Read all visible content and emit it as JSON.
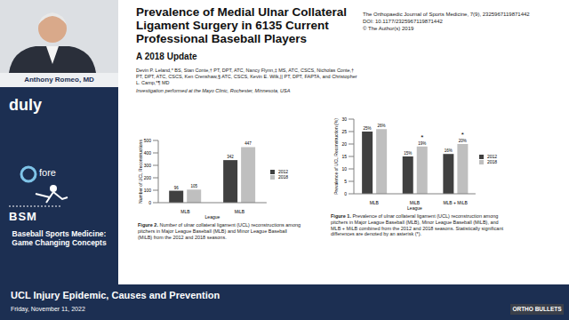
{
  "sidebar": {
    "speaker": "Anthony Romeo, MD",
    "logos": [
      "duly",
      "fore",
      "BSM"
    ],
    "program": "Baseball Sports Medicine: Game Changing Concepts"
  },
  "header": {
    "title": "Prevalence of Medial Ulnar Collateral Ligament Surgery in 6135 Current Professional Baseball Players",
    "subtitle": "A 2018 Update",
    "authors": "Devin P. Leland,* BS, Stan Conte,† PT, DPT, ATC, Nancy Flynn,‡ MS, ATC, CSCS, Nicholas Conte,† PT, DPT, ATC, CSCS, Ken Crenshaw,§ ATC, CSCS, Kevin E. Wilk,|| PT, DPT, FAPTA, and Christopher L. Camp,*¶ MD",
    "affiliation": "Investigation performed at the Mayo Clinic, Rochester, Minnesota, USA"
  },
  "journal": [
    "The Orthopaedic Journal of Sports Medicine, 7(9), 2325967119871442",
    "DOI: 10.1177/2325967119871442",
    "© The Author(s) 2019"
  ],
  "chart_data": [
    {
      "type": "bar",
      "figure": "Figure 2.",
      "caption": "Number of ulnar collateral ligament (UCL) reconstructions among pitchers in Major League Baseball (MLB) and Minor League Baseball (MiLB) from the 2012 and 2018 seasons.",
      "x_label": "League",
      "y_label": "Number of UCL Reconstructions",
      "categories": [
        "MLB",
        "MiLB"
      ],
      "series": [
        {
          "name": "2012",
          "color": "#404040",
          "values": [
            96,
            342
          ]
        },
        {
          "name": "2018",
          "color": "#bfbfbf",
          "values": [
            105,
            447
          ]
        }
      ],
      "ylim": [
        0,
        500
      ],
      "yticks": [
        0,
        100,
        200,
        300,
        400,
        500
      ],
      "grid": false,
      "legend": "right",
      "data_labels": true
    },
    {
      "type": "bar",
      "figure": "Figure 1.",
      "caption": "Prevalence of ulnar collateral ligament (UCL) reconstruction among pitchers in Major League Baseball (MLB), Minor League Baseball (MiLB), and MLB + MiLB combined from the 2012 and 2018 seasons. Statistically significant differences are denoted by an asterisk (*).",
      "x_label": "League",
      "y_label": "Prevalence of UCL Reconstruction (%)",
      "categories": [
        "MLB",
        "MiLB",
        "MLB + MiLB"
      ],
      "series": [
        {
          "name": "2012",
          "color": "#404040",
          "values": [
            25,
            15,
            16
          ],
          "value_labels": [
            "25%",
            "15%",
            "16%"
          ]
        },
        {
          "name": "2018",
          "color": "#bfbfbf",
          "values": [
            26,
            19,
            20
          ],
          "value_labels": [
            "26%",
            "19%",
            "20%"
          ]
        }
      ],
      "ylim": [
        0,
        30
      ],
      "yticks": [
        0,
        5,
        10,
        15,
        20,
        25,
        30
      ],
      "grid": false,
      "legend": "right",
      "data_labels": true,
      "annotations": [
        {
          "category": "MiLB",
          "text": "*"
        },
        {
          "category": "MLB + MiLB",
          "text": "*"
        }
      ]
    }
  ],
  "footer": {
    "title": "UCL Injury Epidemic, Causes and Prevention",
    "date": "Friday, November 11, 2022",
    "brand": "ORTHO BULLETS"
  }
}
